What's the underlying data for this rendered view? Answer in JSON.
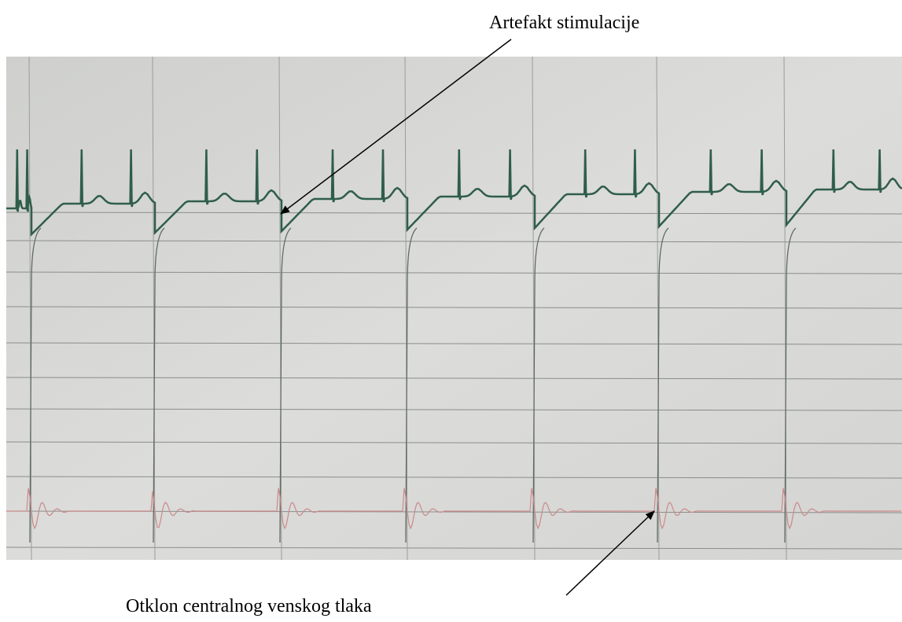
{
  "annotations": {
    "top": "Artefakt stimulacije",
    "bottom": "Otklon centralnog venskog tlaka"
  }
}
